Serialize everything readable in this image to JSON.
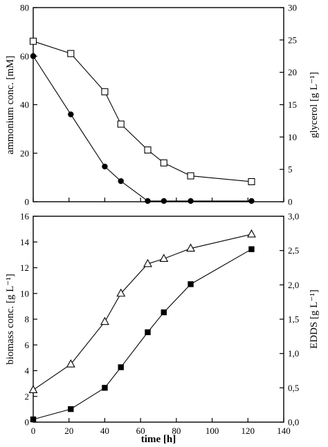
{
  "chart_data": [
    {
      "type": "line",
      "xlim": [
        0,
        140
      ],
      "ylabel_left": "ammonium conc. [mM]",
      "ylabel_right": "glycerol [g L⁻¹]",
      "ylim_left": [
        0,
        80
      ],
      "ylim_right": [
        0,
        30
      ],
      "y_ticks_left": [
        0,
        20,
        40,
        60,
        80
      ],
      "y_ticks_right": [
        0,
        5,
        10,
        15,
        20,
        25,
        30
      ],
      "grid": false,
      "series": [
        {
          "marker": "filled-circle",
          "axis": "left",
          "x": [
            0,
            21,
            40,
            49,
            64,
            73,
            88,
            122
          ],
          "y": [
            60,
            36,
            14.5,
            8.5,
            0.3,
            0.3,
            0.3,
            0.3
          ]
        },
        {
          "marker": "open-square",
          "axis": "right",
          "x": [
            0,
            21,
            40,
            49,
            64,
            73,
            88,
            122
          ],
          "y": [
            24.8,
            22.9,
            17.0,
            12.0,
            8.0,
            6.0,
            4.0,
            3.1
          ]
        }
      ]
    },
    {
      "type": "line",
      "xlim": [
        0,
        140
      ],
      "xlabel": "time [h]",
      "x_ticks": [
        0,
        20,
        40,
        60,
        80,
        100,
        120,
        140
      ],
      "ylabel_left": "biomass conc. [g L⁻¹]",
      "ylabel_right": "EDDS [g L⁻¹]",
      "ylim_left": [
        0,
        16
      ],
      "ylim_right": [
        0,
        3
      ],
      "y_ticks_left": [
        "0",
        "2",
        "4",
        "6",
        "8",
        "10",
        "12",
        "14",
        "16"
      ],
      "y_ticks_right": [
        "0,0",
        "0,5",
        "1,0",
        "1,5",
        "2,0",
        "2,5",
        "3,0"
      ],
      "grid": false,
      "series": [
        {
          "marker": "open-triangle",
          "axis": "left",
          "x": [
            0,
            21,
            40,
            49,
            64,
            73,
            88,
            122
          ],
          "y": [
            2.5,
            4.5,
            7.8,
            10.0,
            12.3,
            12.7,
            13.5,
            14.6
          ]
        },
        {
          "marker": "filled-square",
          "axis": "right",
          "x": [
            0,
            21,
            40,
            49,
            64,
            73,
            88,
            122
          ],
          "y": [
            0.04,
            0.19,
            0.5,
            0.8,
            1.31,
            1.6,
            2.01,
            2.52
          ]
        }
      ]
    }
  ]
}
